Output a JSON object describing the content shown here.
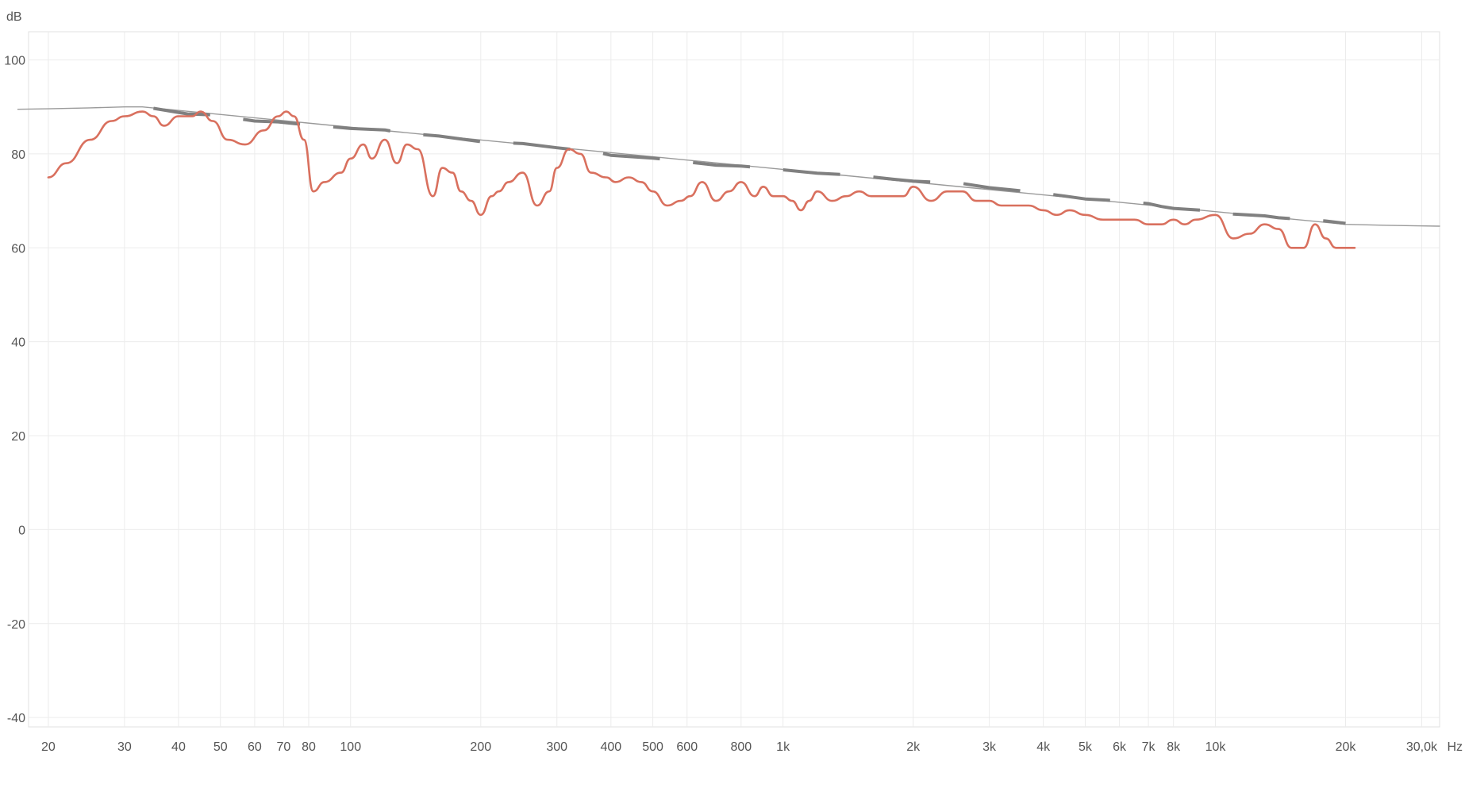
{
  "chart_data": {
    "type": "line",
    "title": "",
    "xlabel": "Hz",
    "ylabel": "dB",
    "x_scale": "log",
    "xlim": [
      18,
      33000
    ],
    "ylim": [
      -42,
      106
    ],
    "grid": true,
    "legend": "none",
    "y_ticks": [
      100,
      80,
      60,
      40,
      20,
      0,
      -20,
      -40
    ],
    "y_tick_labels": [
      "100",
      "80",
      "60",
      "40",
      "20",
      "0",
      "-20",
      "-40"
    ],
    "x_ticks": [
      20,
      30,
      40,
      50,
      60,
      70,
      80,
      100,
      200,
      300,
      400,
      500,
      600,
      800,
      1000,
      2000,
      3000,
      4000,
      5000,
      6000,
      7000,
      8000,
      10000,
      20000,
      30000
    ],
    "x_tick_labels": [
      "20",
      "30",
      "40",
      "50",
      "60",
      "70",
      "80",
      "100",
      "200",
      "300",
      "400",
      "500",
      "600",
      "800",
      "1k",
      "2k",
      "3k",
      "4k",
      "5k",
      "6k",
      "7k",
      "8k",
      "10k",
      "20k",
      "30,0k"
    ],
    "series": [
      {
        "color": "#d9705e",
        "style": "solid",
        "x": [
          20,
          22,
          25,
          28,
          30,
          33,
          35,
          37,
          40,
          43,
          45,
          48,
          52,
          57,
          63,
          68,
          71,
          74,
          78,
          82,
          87,
          95,
          100,
          107,
          112,
          120,
          128,
          135,
          143,
          155,
          163,
          172,
          180,
          190,
          200,
          212,
          220,
          232,
          250,
          270,
          288,
          300,
          320,
          340,
          360,
          390,
          410,
          440,
          470,
          500,
          540,
          580,
          610,
          650,
          700,
          750,
          800,
          860,
          900,
          950,
          1000,
          1050,
          1100,
          1150,
          1200,
          1300,
          1400,
          1500,
          1600,
          1700,
          1800,
          1900,
          2000,
          2200,
          2400,
          2600,
          2800,
          3000,
          3200,
          3400,
          3700,
          4000,
          4300,
          4600,
          5000,
          5500,
          6000,
          6500,
          7000,
          7500,
          8000,
          8500,
          9000,
          10000,
          11000,
          12000,
          13000,
          14000,
          15000,
          16000,
          17000,
          18000,
          19000,
          20000,
          21000
        ],
        "y": [
          75,
          78,
          83,
          87,
          88,
          89,
          88,
          86,
          88,
          88,
          89,
          87,
          83,
          82,
          85,
          88,
          89,
          88,
          83,
          72,
          74,
          76,
          79,
          82,
          79,
          83,
          78,
          82,
          81,
          71,
          77,
          76,
          72,
          70,
          67,
          71,
          72,
          74,
          76,
          69,
          72,
          77,
          81,
          80,
          76,
          75,
          74,
          75,
          74,
          72,
          69,
          70,
          71,
          74,
          70,
          72,
          74,
          71,
          73,
          71,
          71,
          70,
          68,
          70,
          72,
          70,
          71,
          72,
          71,
          71,
          71,
          71,
          73,
          70,
          72,
          72,
          70,
          70,
          69,
          69,
          69,
          68,
          67,
          68,
          67,
          66,
          66,
          66,
          65,
          65,
          66,
          65,
          66,
          67,
          62,
          63,
          65,
          64,
          60,
          60,
          65,
          62,
          60,
          60,
          60
        ]
      },
      {
        "color": "#808080",
        "style": "dashed",
        "x": [
          35,
          42,
          48,
          55,
          60,
          68,
          75,
          90,
          100,
          120,
          130,
          160,
          200,
          250,
          300,
          370,
          400,
          500,
          600,
          700,
          800,
          1000,
          1200,
          1500,
          1800,
          2000,
          2600,
          3000,
          3500,
          4000,
          4500,
          5000,
          6000,
          7000,
          7500,
          8000,
          10000,
          11000,
          13000,
          14000,
          18000,
          20000
        ],
        "y": [
          89.7,
          88.5,
          88.3,
          87.5,
          87.0,
          86.8,
          86.4,
          85.8,
          85.4,
          85.1,
          84.5,
          83.8,
          82.6,
          82.2,
          81.3,
          80.4,
          79.7,
          79.1,
          78.3,
          77.6,
          77.4,
          76.6,
          75.9,
          75.4,
          74.6,
          74.2,
          73.7,
          72.8,
          72.2,
          71.6,
          71.0,
          70.4,
          70.0,
          69.4,
          68.8,
          68.4,
          67.8,
          67.2,
          66.8,
          66.4,
          65.7,
          65.2
        ]
      },
      {
        "color": "#9a9a9a",
        "style": "solid",
        "x": [
          17,
          20,
          25,
          30,
          33,
          20000,
          25000,
          33000
        ],
        "y": [
          89.5,
          89.6,
          89.8,
          90.0,
          90.0,
          65.0,
          64.8,
          64.6
        ]
      }
    ]
  }
}
